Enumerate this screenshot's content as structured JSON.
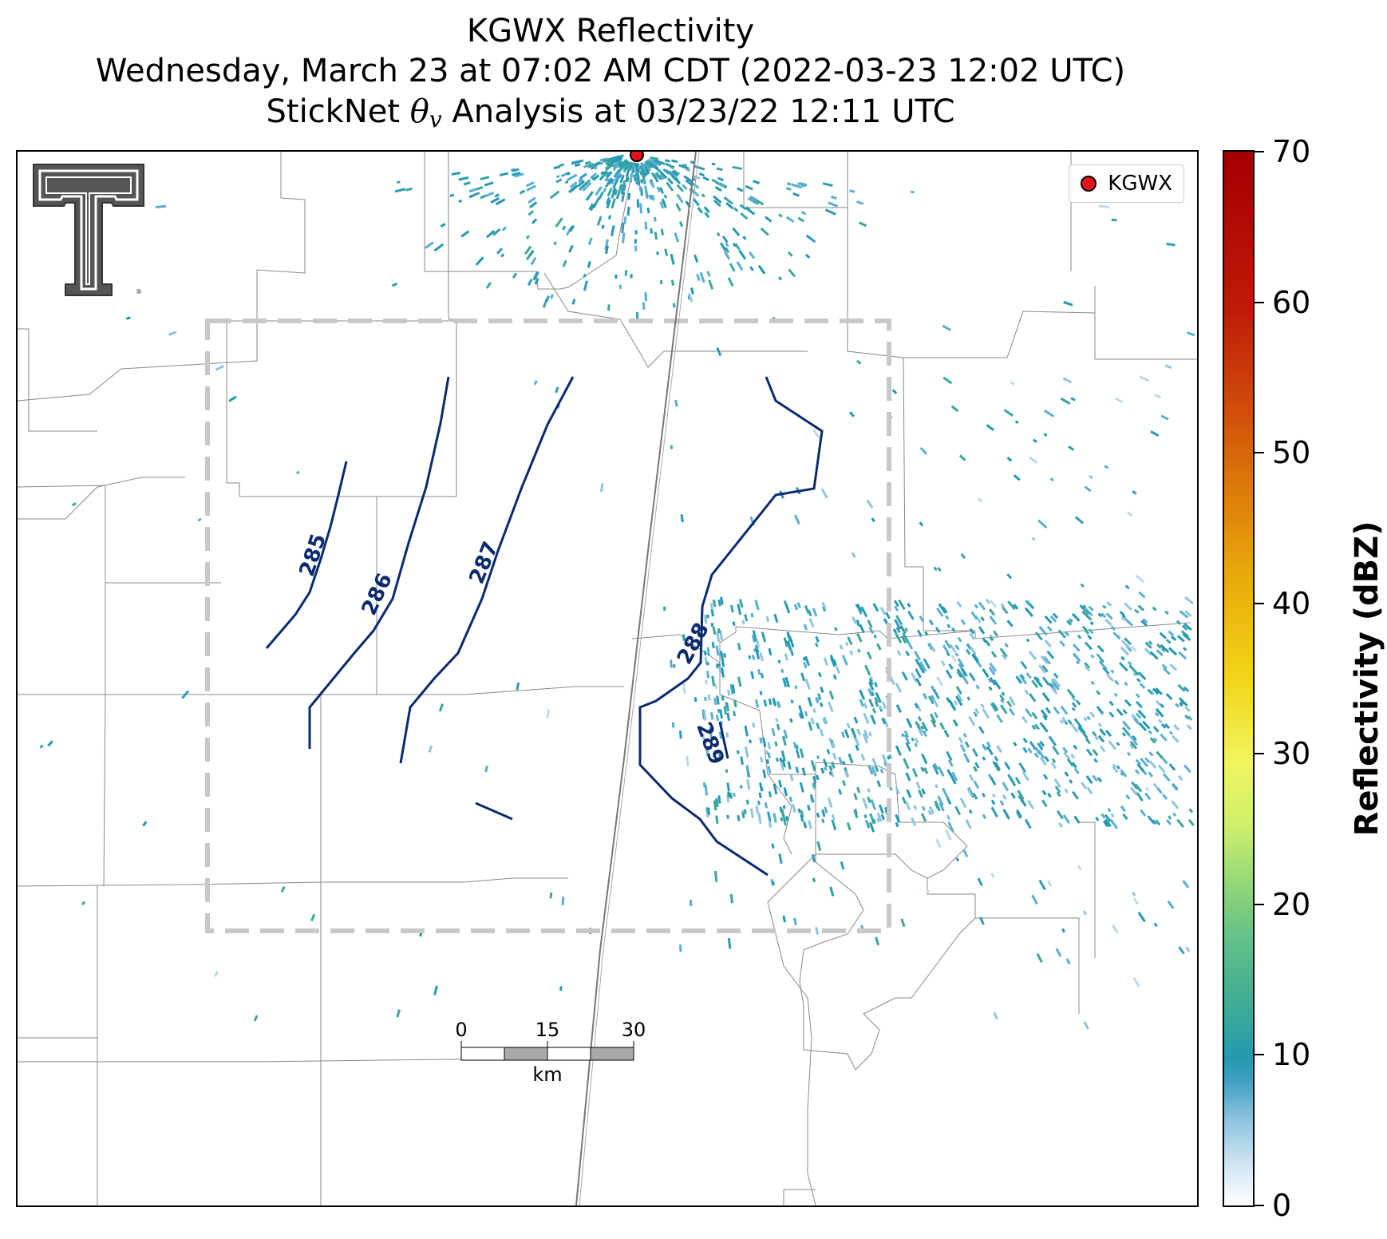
{
  "title": {
    "line1": "KGWX Reflectivity",
    "line2": "Wednesday, March 23 at 07:02 AM CDT (2022-03-23 12:02 UTC)",
    "line3_prefix": "StickNet ",
    "line3_symbol": "θ",
    "line3_subscript": "v",
    "line3_suffix": " Analysis at 03/23/22 12:11 UTC"
  },
  "legend": {
    "label": "KGWX",
    "marker_color": "#e0141a"
  },
  "colorbar": {
    "label": "Reflectivity (dBZ)",
    "ticks": [
      "0",
      "10",
      "20",
      "30",
      "40",
      "50",
      "60",
      "70"
    ],
    "range": [
      0,
      70
    ]
  },
  "contours": {
    "color": "#0a2a6e",
    "labels": [
      "285",
      "286",
      "287",
      "288",
      "289"
    ]
  },
  "scale_bar": {
    "ticks": [
      "0",
      "15",
      "30"
    ],
    "unit": "km"
  },
  "analysis_box": {
    "style": "dashed",
    "color": "#c8c8c8"
  },
  "logo": {
    "name": "Texas Tech Double T"
  }
}
